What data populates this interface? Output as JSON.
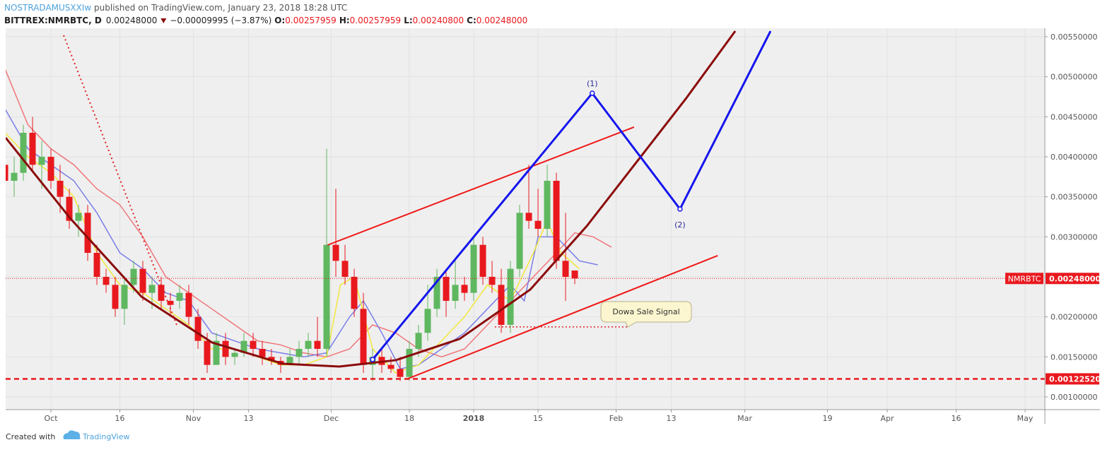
{
  "header": {
    "author": "NOSTRADAMUSXXIw",
    "published": " published on TradingView.com, January 23, 2018 18:28 UTC",
    "symbol": "BITTREX:NMRBTC, D",
    "last": "0.00248000",
    "change": "−0.00009995 (−3.87%)",
    "open_label": "O:",
    "open": "0.00257959",
    "high_label": "H:",
    "high": "0.00257959",
    "low_label": "L:",
    "low": "0.00240800",
    "close_label": "C:",
    "close": "0.00248000"
  },
  "footer": {
    "created": "Created with",
    "brand": "TradingView"
  },
  "chart_data": {
    "type": "candlestick",
    "xlim": [
      -9.85,
      216.3
    ],
    "ylim": [
      0.000841,
      0.005606
    ],
    "xticks": [
      {
        "value": 0,
        "label": "Oct"
      },
      {
        "value": 15,
        "label": "16"
      },
      {
        "value": 31,
        "label": "Nov"
      },
      {
        "value": 43,
        "label": "13"
      },
      {
        "value": 61,
        "label": "Dec"
      },
      {
        "value": 78,
        "label": "18"
      },
      {
        "value": 92,
        "label": "2018"
      },
      {
        "value": 106,
        "label": "15"
      },
      {
        "value": 123,
        "label": "Feb"
      },
      {
        "value": 135,
        "label": "13"
      },
      {
        "value": 151,
        "label": "Mar"
      },
      {
        "value": 169,
        "label": "19"
      },
      {
        "value": 182,
        "label": "Apr"
      },
      {
        "value": 197,
        "label": "16"
      },
      {
        "value": 212,
        "label": "May"
      }
    ],
    "yticks": [
      {
        "value": 0.001,
        "label": "0.00100000"
      },
      {
        "value": 0.0015,
        "label": "0.00150000"
      },
      {
        "value": 0.002,
        "label": "0.00200000"
      },
      {
        "value": 0.0025,
        "label": "0.00250000"
      },
      {
        "value": 0.003,
        "label": "0.00300000"
      },
      {
        "value": 0.0035,
        "label": "0.00350000"
      },
      {
        "value": 0.004,
        "label": "0.00400000"
      },
      {
        "value": 0.0045,
        "label": "0.00450000"
      },
      {
        "value": 0.005,
        "label": "0.00500000"
      },
      {
        "value": 0.0055,
        "label": "0.00550000"
      }
    ],
    "grid": true,
    "up_color": "#5fb760",
    "down_color": "#e8191e",
    "candles": [
      [
        -10,
        0.0039,
        0.0041,
        0.0036,
        0.0037
      ],
      [
        -8,
        0.0037,
        0.004,
        0.0035,
        0.0038
      ],
      [
        -6,
        0.0038,
        0.0044,
        0.0037,
        0.0043
      ],
      [
        -4,
        0.0043,
        0.0045,
        0.0038,
        0.0039
      ],
      [
        -2,
        0.0039,
        0.0042,
        0.0036,
        0.004
      ],
      [
        0,
        0.004,
        0.0041,
        0.0036,
        0.0037
      ],
      [
        2,
        0.0037,
        0.0039,
        0.0033,
        0.0035
      ],
      [
        4,
        0.0035,
        0.0036,
        0.0031,
        0.0032
      ],
      [
        6,
        0.0032,
        0.0034,
        0.003,
        0.0033
      ],
      [
        8,
        0.0033,
        0.0034,
        0.0027,
        0.0028
      ],
      [
        10,
        0.0028,
        0.0029,
        0.0024,
        0.0025
      ],
      [
        12,
        0.0025,
        0.0026,
        0.0023,
        0.0024
      ],
      [
        14,
        0.0024,
        0.0025,
        0.002,
        0.0021
      ],
      [
        16,
        0.0021,
        0.0025,
        0.0019,
        0.0024
      ],
      [
        18,
        0.0024,
        0.0027,
        0.0023,
        0.0026
      ],
      [
        20,
        0.0026,
        0.0027,
        0.0022,
        0.0023
      ],
      [
        22,
        0.0023,
        0.0025,
        0.0021,
        0.0024
      ],
      [
        24,
        0.0024,
        0.0025,
        0.0021,
        0.0022
      ],
      [
        26,
        0.0022,
        0.0023,
        0.002,
        0.00215
      ],
      [
        28,
        0.0022,
        0.0024,
        0.0021,
        0.0023
      ],
      [
        30,
        0.0023,
        0.0024,
        0.0019,
        0.002
      ],
      [
        32,
        0.002,
        0.0021,
        0.0016,
        0.0017
      ],
      [
        34,
        0.0017,
        0.0018,
        0.0013,
        0.0014
      ],
      [
        36,
        0.0014,
        0.0018,
        0.0014,
        0.0017
      ],
      [
        38,
        0.0017,
        0.0018,
        0.0014,
        0.0015
      ],
      [
        40,
        0.0015,
        0.0016,
        0.0014,
        0.00155
      ],
      [
        42,
        0.00155,
        0.0018,
        0.0015,
        0.0017
      ],
      [
        44,
        0.0017,
        0.0018,
        0.0015,
        0.0016
      ],
      [
        46,
        0.0016,
        0.0017,
        0.0014,
        0.0015
      ],
      [
        48,
        0.0015,
        0.0016,
        0.0014,
        0.00145
      ],
      [
        50,
        0.00145,
        0.0015,
        0.0013,
        0.0014
      ],
      [
        52,
        0.0014,
        0.0016,
        0.0014,
        0.0015
      ],
      [
        54,
        0.0015,
        0.0017,
        0.0014,
        0.0016
      ],
      [
        56,
        0.0016,
        0.0018,
        0.0015,
        0.0017
      ],
      [
        58,
        0.0017,
        0.002,
        0.0015,
        0.0016
      ],
      [
        60,
        0.0016,
        0.0041,
        0.0015,
        0.0029
      ],
      [
        62,
        0.0029,
        0.0036,
        0.0025,
        0.0027
      ],
      [
        64,
        0.0027,
        0.0029,
        0.0024,
        0.0025
      ],
      [
        66,
        0.0025,
        0.0026,
        0.002,
        0.0021
      ],
      [
        68,
        0.0021,
        0.0023,
        0.0013,
        0.0014
      ],
      [
        70,
        0.0014,
        0.0016,
        0.0012,
        0.0015
      ],
      [
        72,
        0.0015,
        0.0016,
        0.0013,
        0.0014
      ],
      [
        74,
        0.0014,
        0.0015,
        0.0013,
        0.00135
      ],
      [
        76,
        0.00135,
        0.0015,
        0.0012,
        0.00125
      ],
      [
        78,
        0.00125,
        0.0017,
        0.0012,
        0.0016
      ],
      [
        80,
        0.0016,
        0.0019,
        0.0015,
        0.0018
      ],
      [
        82,
        0.0018,
        0.0024,
        0.0017,
        0.0021
      ],
      [
        84,
        0.0021,
        0.0026,
        0.002,
        0.0025
      ],
      [
        86,
        0.0025,
        0.0026,
        0.002,
        0.0022
      ],
      [
        88,
        0.0022,
        0.0027,
        0.0021,
        0.0024
      ],
      [
        90,
        0.0024,
        0.0025,
        0.0022,
        0.0023
      ],
      [
        92,
        0.0023,
        0.003,
        0.0022,
        0.0029
      ],
      [
        94,
        0.0029,
        0.003,
        0.0024,
        0.0025
      ],
      [
        96,
        0.0025,
        0.0027,
        0.0023,
        0.0024
      ],
      [
        98,
        0.0024,
        0.0026,
        0.0018,
        0.0019
      ],
      [
        100,
        0.0019,
        0.0027,
        0.0018,
        0.0026
      ],
      [
        102,
        0.0026,
        0.0034,
        0.0025,
        0.0033
      ],
      [
        104,
        0.0033,
        0.0039,
        0.0031,
        0.0032
      ],
      [
        106,
        0.0032,
        0.0036,
        0.003,
        0.0031
      ],
      [
        108,
        0.0031,
        0.0039,
        0.003,
        0.0037
      ],
      [
        110,
        0.0037,
        0.0038,
        0.0026,
        0.0027
      ],
      [
        112,
        0.0027,
        0.0033,
        0.0022,
        0.0025
      ],
      [
        114,
        0.00257959,
        0.00257959,
        0.002408,
        0.00248
      ]
    ],
    "lines": [
      {
        "color": "#f0767a",
        "x": [
          -10,
          -5,
          0,
          5,
          10,
          15,
          20,
          25,
          30,
          35,
          40,
          45,
          50,
          55,
          60,
          65,
          70,
          75,
          80,
          85,
          90,
          95,
          100,
          105,
          110,
          114,
          118,
          122
        ],
        "values": [
          0.0051,
          0.0044,
          0.0041,
          0.0039,
          0.0036,
          0.0034,
          0.003,
          0.0025,
          0.0023,
          0.0021,
          0.0019,
          0.0017,
          0.00165,
          0.00155,
          0.0015,
          0.0016,
          0.0019,
          0.0018,
          0.0016,
          0.0015,
          0.0016,
          0.0019,
          0.0022,
          0.0025,
          0.0028,
          0.00305,
          0.003,
          0.00287
        ]
      },
      {
        "color": "#7b7ee8",
        "x": [
          -10,
          -5,
          0,
          5,
          10,
          15,
          20,
          25,
          30,
          35,
          40,
          45,
          50,
          55,
          60,
          65,
          68,
          72,
          76,
          80,
          85,
          90,
          95,
          100,
          103,
          106,
          110,
          115,
          119
        ],
        "values": [
          0.0046,
          0.0041,
          0.0039,
          0.0037,
          0.0033,
          0.0028,
          0.0026,
          0.0023,
          0.0022,
          0.0018,
          0.0017,
          0.0016,
          0.00155,
          0.0015,
          0.00155,
          0.002,
          0.0022,
          0.0018,
          0.00135,
          0.0014,
          0.0016,
          0.0018,
          0.0021,
          0.0024,
          0.0022,
          0.003,
          0.003,
          0.0027,
          0.00265
        ]
      },
      {
        "color": "#f3e73a",
        "x": [
          -10,
          -5,
          0,
          5,
          10,
          15,
          20,
          25,
          30,
          35,
          40,
          45,
          50,
          55,
          60,
          63,
          66,
          70,
          75,
          80,
          85,
          90,
          95,
          100,
          105,
          108,
          111,
          115
        ],
        "values": [
          0.0043,
          0.004,
          0.0038,
          0.0035,
          0.0028,
          0.0024,
          0.0023,
          0.0021,
          0.0019,
          0.0016,
          0.0016,
          0.0015,
          0.0014,
          0.0014,
          0.0015,
          0.0024,
          0.0025,
          0.0016,
          0.0013,
          0.0014,
          0.0017,
          0.002,
          0.0024,
          0.0022,
          0.0028,
          0.0032,
          0.0028,
          0.0026
        ]
      }
    ],
    "curve": {
      "color": "#8b0b0b",
      "x": [
        -9.85,
        4.31,
        19.69,
        35.08,
        50.46,
        62.77,
        75.08,
        88.92,
        104.31,
        116.62,
        127.38,
        138.15,
        148.92
      ],
      "values": [
        0.004238,
        0.003224,
        0.002253,
        0.001679,
        0.001415,
        0.001379,
        0.001459,
        0.001724,
        0.002341,
        0.003135,
        0.003929,
        0.004724,
        0.005571
      ]
    },
    "channel": {
      "color": "#f01818",
      "upper": {
        "x": [
          60.2,
          126.9
        ],
        "values": [
          0.002897,
          0.004371
        ]
      },
      "lower": {
        "x": [
          77.4,
          145.1
        ],
        "values": [
          0.001221,
          0.002765
        ]
      }
    },
    "dotted_trend": {
      "color": "#e02020",
      "x": [
        2.77,
        27.38
      ],
      "values": [
        0.005518,
        0.0019
      ]
    },
    "signal_line": {
      "color": "#e02020",
      "x": [
        96.6,
        125.5
      ],
      "values": [
        0.001874,
        0.001874
      ]
    },
    "wave": {
      "color": "#1515ee",
      "x": [
        70,
        117.8,
        136.9,
        156.6
      ],
      "values": [
        0.001467,
        0.004794,
        0.003347,
        0.00557
      ],
      "labels": [
        null,
        "(1)",
        "(2)",
        null
      ]
    },
    "last_price": {
      "name": "NMRBTC",
      "value": 0.00248,
      "label": "0.00248000",
      "color": "#e8191e"
    },
    "support": {
      "value": 0.0012252,
      "label": "0.00122520",
      "color": "#e8191e"
    },
    "annotation": "Dowa Sale Signal"
  }
}
